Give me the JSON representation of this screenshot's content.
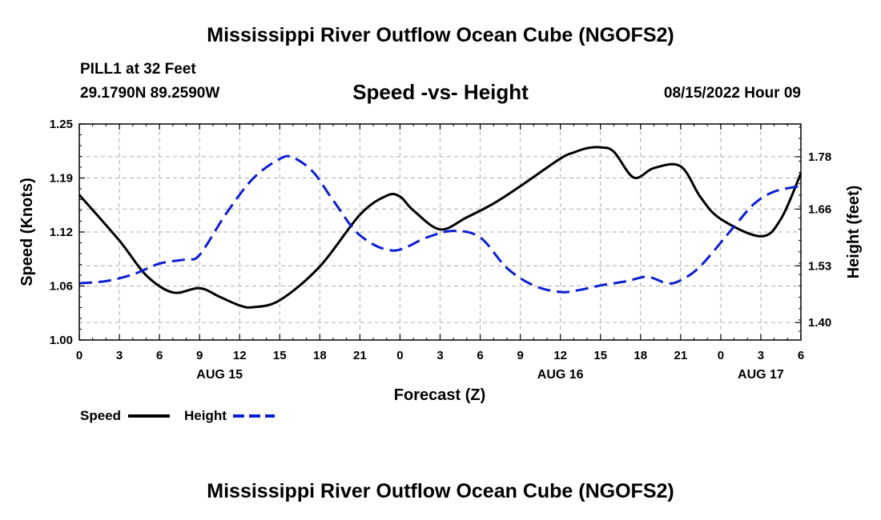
{
  "header": {
    "title": "Mississippi River Outflow Ocean Cube (NGOFS2)",
    "station": "PILL1 at 32 Feet",
    "coords": "29.1790N  89.2590W",
    "subtitle": "Speed -vs- Height",
    "datetime": "08/15/2022 Hour 09"
  },
  "footer": {
    "title": "Mississippi River Outflow Ocean Cube (NGOFS2)"
  },
  "colors": {
    "speed": "#000000",
    "height": "#0a1ed2",
    "grid": "#bbbbbb"
  },
  "chart_data": {
    "type": "line",
    "title": "Speed -vs- Height",
    "xlabel": "Forecast (Z)",
    "ylabel_left": "Speed (Knots)",
    "ylabel_right": "Height (feet)",
    "xlim": [
      0,
      54
    ],
    "ylim_left": [
      1.0,
      1.25
    ],
    "ylim_right": [
      1.36,
      1.855
    ],
    "left_ticks": [
      "1.00",
      "1.06",
      "1.12",
      "1.19",
      "1.25"
    ],
    "left_tick_values": [
      1.0,
      1.0625,
      1.125,
      1.1875,
      1.25
    ],
    "right_ticks": [
      "1.40",
      "1.53",
      "1.66",
      "1.78"
    ],
    "right_tick_values": [
      1.4,
      1.53,
      1.66,
      1.78
    ],
    "x_tick_labels": [
      "0",
      "3",
      "6",
      "9",
      "12",
      "15",
      "18",
      "21",
      "0",
      "3",
      "6",
      "9",
      "12",
      "15",
      "18",
      "21",
      "0",
      "3",
      "6"
    ],
    "day_labels": [
      {
        "label": "AUG 15",
        "hour": 10.5
      },
      {
        "label": "AUG 16",
        "hour": 36
      },
      {
        "label": "AUG 17",
        "hour": 51
      }
    ],
    "grid": true,
    "legend": {
      "position": "bottom-left",
      "speed_label": "Speed",
      "height_label": "Height"
    },
    "series": [
      {
        "name": "Speed",
        "axis": "left",
        "style": "solid",
        "x": [
          0,
          3,
          5,
          7,
          9,
          10.5,
          12,
          13,
          15,
          18,
          21,
          23,
          24,
          25,
          27,
          29,
          31,
          33,
          36,
          37,
          38,
          39,
          40,
          41.5,
          43,
          45,
          46.5,
          48,
          51,
          52.5,
          54
        ],
        "y": [
          1.168,
          1.115,
          1.075,
          1.055,
          1.06,
          1.05,
          1.04,
          1.038,
          1.046,
          1.085,
          1.145,
          1.167,
          1.166,
          1.15,
          1.128,
          1.142,
          1.158,
          1.178,
          1.21,
          1.217,
          1.222,
          1.223,
          1.218,
          1.188,
          1.199,
          1.201,
          1.165,
          1.14,
          1.12,
          1.14,
          1.193
        ]
      },
      {
        "name": "Height",
        "axis": "right",
        "style": "dashed",
        "x": [
          0,
          2,
          4,
          6,
          8,
          9,
          11,
          13,
          15,
          16,
          17.5,
          19,
          21,
          23.5,
          26,
          28,
          30,
          32,
          34,
          36,
          37.5,
          39,
          41,
          42.5,
          44,
          45,
          46.5,
          49,
          50.5,
          52,
          54
        ],
        "y": [
          1.49,
          1.495,
          1.51,
          1.535,
          1.545,
          1.555,
          1.65,
          1.73,
          1.775,
          1.778,
          1.745,
          1.68,
          1.6,
          1.565,
          1.595,
          1.61,
          1.595,
          1.525,
          1.485,
          1.47,
          1.475,
          1.485,
          1.495,
          1.505,
          1.49,
          1.497,
          1.53,
          1.62,
          1.672,
          1.7,
          1.713
        ]
      }
    ]
  }
}
